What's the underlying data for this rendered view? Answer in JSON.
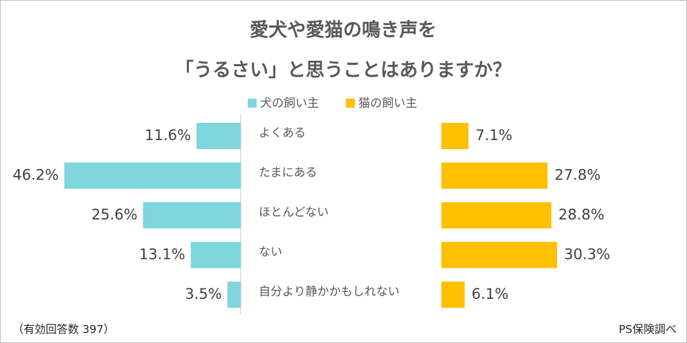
{
  "chart_data": {
    "type": "bar",
    "title": [
      "愛犬や愛猫の鳴き声を",
      "「うるさい」と思うことはありますか？"
    ],
    "categories": [
      "よくある",
      "たまにある",
      "ほとんどない",
      "ない",
      "自分より静かかもしれない"
    ],
    "series": [
      {
        "name": "犬の飼い主",
        "color": "#7fd6dc",
        "values": [
          11.6,
          46.2,
          25.6,
          13.1,
          3.5
        ],
        "value_labels": [
          "11.6%",
          "46.2%",
          "25.6%",
          "13.1%",
          "3.5%"
        ]
      },
      {
        "name": "猫の飼い主",
        "color": "#ffc000",
        "values": [
          7.1,
          27.8,
          28.8,
          30.3,
          6.1
        ],
        "value_labels": [
          "7.1%",
          "27.8%",
          "28.8%",
          "30.3%",
          "6.1%"
        ]
      }
    ],
    "note": "（有効回答数 397）",
    "source": "PS保険調べ"
  }
}
